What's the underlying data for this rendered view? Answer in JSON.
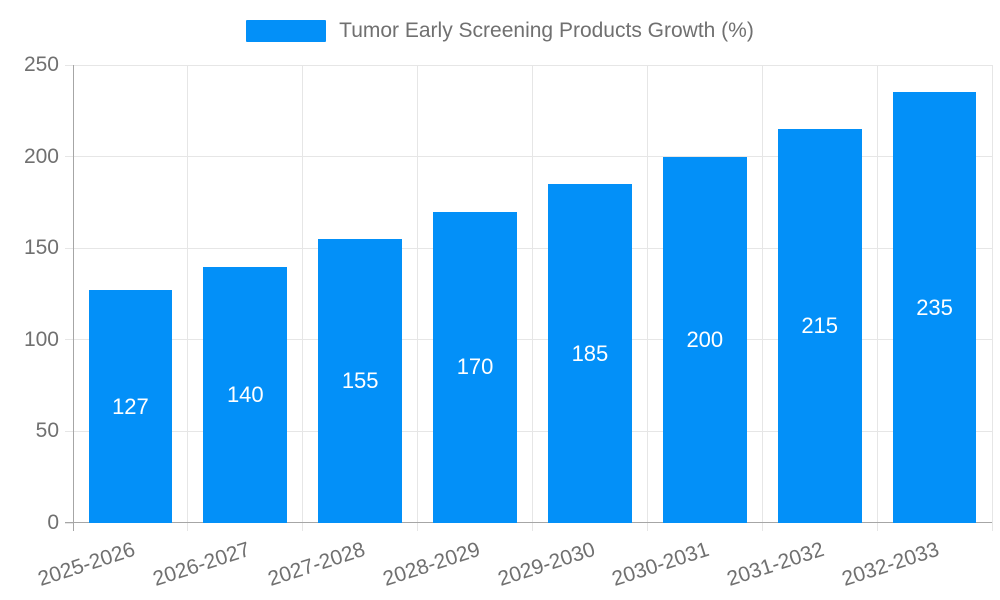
{
  "chart_data": {
    "type": "bar",
    "title": "",
    "legend": {
      "label": "Tumor Early Screening Products Growth (%)",
      "position": "top-center"
    },
    "categories": [
      "2025-2026",
      "2026-2027",
      "2027-2028",
      "2028-2029",
      "2029-2030",
      "2030-2031",
      "2031-2032",
      "2032-2033"
    ],
    "series": [
      {
        "name": "Tumor Early Screening Products Growth (%)",
        "values": [
          127,
          140,
          155,
          170,
          185,
          200,
          215,
          235
        ]
      }
    ],
    "value_labels_shown_inside_bars": [
      127,
      140,
      155,
      170,
      185,
      200,
      215,
      235
    ],
    "xlabel": "",
    "ylabel": "",
    "ylim": [
      0,
      250
    ],
    "yticks": [
      0,
      50,
      100,
      150,
      200,
      250
    ],
    "grid": true,
    "x_label_rotation_deg": -18,
    "colors": {
      "bar": "#0390f8",
      "bar_value_text": "#ffffff",
      "axis_line": "#a6a6a6",
      "gridline": "#e6e6e6",
      "tick_text": "#707070",
      "legend_text": "#707070",
      "background": "#ffffff"
    }
  }
}
